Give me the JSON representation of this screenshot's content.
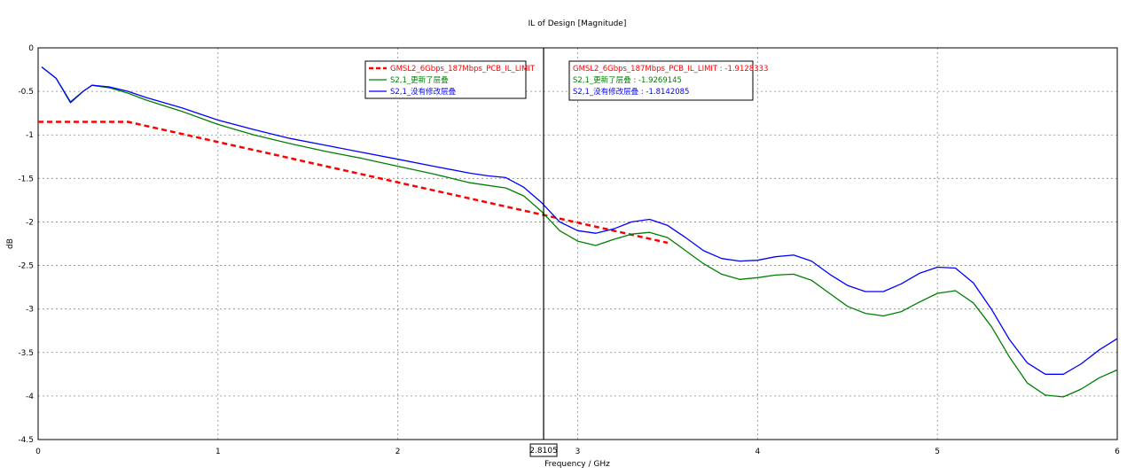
{
  "chart_data": {
    "type": "line",
    "title": "IL of Design [Magnitude]",
    "xlabel": "Frequency / GHz",
    "ylabel": "dB",
    "xlim": [
      0,
      6
    ],
    "ylim": [
      -4.5,
      0
    ],
    "x_ticks": [
      "0",
      "1",
      "2",
      "3",
      "4",
      "5",
      "6"
    ],
    "y_ticks": [
      "0",
      "-0.5",
      "-1",
      "-1.5",
      "-2",
      "-2.5",
      "-3",
      "-3.5",
      "-4",
      "-4.5"
    ],
    "grid": true,
    "legend_position": "top-center",
    "marker": {
      "x": 2.8105,
      "x_label": "2.8105",
      "readouts": [
        "GMSL2_6Gbps_187Mbps_PCB_IL_LIMIT : -1.9128333",
        "S2,1_更新了层叠 : -1.9269145",
        "S2,1_没有修改层叠 : -1.8142085"
      ]
    },
    "series": [
      {
        "name": "GMSL2_6Gbps_187Mbps_PCB_IL_LIMIT",
        "color": "#ff0000",
        "style": "dashed",
        "x": [
          0,
          0.5,
          3.5
        ],
        "y": [
          -0.85,
          -0.85,
          -2.24
        ]
      },
      {
        "name": "S2,1_更新了层叠",
        "color": "#008000",
        "style": "solid",
        "x": [
          0.02,
          0.1,
          0.18,
          0.25,
          0.3,
          0.4,
          0.5,
          0.6,
          0.8,
          1.0,
          1.2,
          1.4,
          1.6,
          1.8,
          2.0,
          2.2,
          2.4,
          2.5,
          2.6,
          2.7,
          2.8,
          2.9,
          3.0,
          3.1,
          3.2,
          3.3,
          3.4,
          3.5,
          3.6,
          3.7,
          3.8,
          3.9,
          4.0,
          4.1,
          4.2,
          4.3,
          4.4,
          4.5,
          4.6,
          4.7,
          4.8,
          4.9,
          5.0,
          5.1,
          5.2,
          5.3,
          5.4,
          5.5,
          5.6,
          5.7,
          5.8,
          5.9,
          6.0
        ],
        "y": [
          -0.22,
          -0.35,
          -0.62,
          -0.5,
          -0.43,
          -0.46,
          -0.52,
          -0.6,
          -0.73,
          -0.88,
          -1.0,
          -1.1,
          -1.19,
          -1.27,
          -1.36,
          -1.45,
          -1.55,
          -1.58,
          -1.61,
          -1.7,
          -1.88,
          -2.1,
          -2.22,
          -2.27,
          -2.2,
          -2.14,
          -2.12,
          -2.18,
          -2.33,
          -2.48,
          -2.6,
          -2.66,
          -2.64,
          -2.61,
          -2.6,
          -2.67,
          -2.82,
          -2.97,
          -3.05,
          -3.08,
          -3.03,
          -2.92,
          -2.82,
          -2.79,
          -2.93,
          -3.2,
          -3.55,
          -3.85,
          -3.99,
          -4.01,
          -3.92,
          -3.79,
          -3.7
        ]
      },
      {
        "name": "S2,1_没有修改层叠",
        "color": "#0000ff",
        "style": "solid",
        "x": [
          0.02,
          0.1,
          0.18,
          0.25,
          0.3,
          0.4,
          0.5,
          0.6,
          0.8,
          1.0,
          1.2,
          1.4,
          1.6,
          1.8,
          2.0,
          2.2,
          2.4,
          2.5,
          2.6,
          2.7,
          2.8,
          2.9,
          3.0,
          3.1,
          3.2,
          3.3,
          3.4,
          3.5,
          3.6,
          3.7,
          3.8,
          3.9,
          4.0,
          4.1,
          4.2,
          4.3,
          4.4,
          4.5,
          4.6,
          4.7,
          4.8,
          4.9,
          5.0,
          5.1,
          5.2,
          5.3,
          5.4,
          5.5,
          5.6,
          5.7,
          5.8,
          5.9,
          6.0
        ],
        "y": [
          -0.22,
          -0.35,
          -0.63,
          -0.5,
          -0.43,
          -0.45,
          -0.5,
          -0.57,
          -0.69,
          -0.83,
          -0.94,
          -1.04,
          -1.12,
          -1.2,
          -1.28,
          -1.36,
          -1.44,
          -1.47,
          -1.49,
          -1.6,
          -1.78,
          -2.0,
          -2.1,
          -2.13,
          -2.08,
          -2.0,
          -1.97,
          -2.04,
          -2.18,
          -2.33,
          -2.42,
          -2.45,
          -2.44,
          -2.4,
          -2.38,
          -2.45,
          -2.6,
          -2.73,
          -2.8,
          -2.8,
          -2.71,
          -2.59,
          -2.52,
          -2.53,
          -2.7,
          -3.0,
          -3.35,
          -3.62,
          -3.75,
          -3.75,
          -3.63,
          -3.47,
          -3.34
        ]
      }
    ]
  }
}
